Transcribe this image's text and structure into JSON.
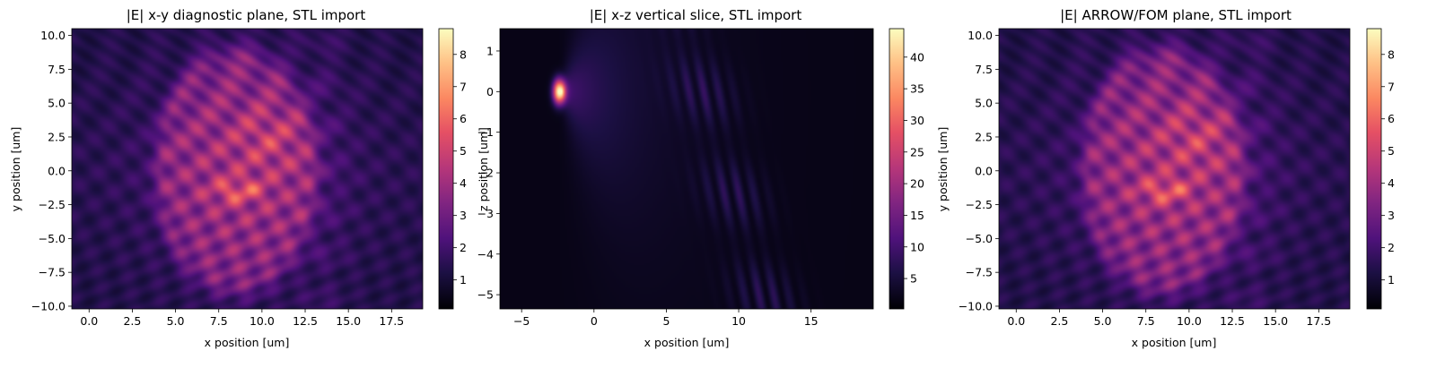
{
  "colormap": "magma",
  "chart_data": [
    {
      "type": "heatmap",
      "title": "|E| x-y diagnostic plane, STL import",
      "xlabel": "x position [um]",
      "ylabel": "y position [um]",
      "xlim": [
        -1.0,
        19.3
      ],
      "ylim": [
        -10.2,
        10.5
      ],
      "xticks": [
        "0.0",
        "2.5",
        "5.0",
        "7.5",
        "10.0",
        "12.5",
        "15.0",
        "17.5"
      ],
      "xtick_values": [
        0,
        2.5,
        5,
        7.5,
        10,
        12.5,
        15,
        17.5
      ],
      "yticks": [
        "10.0",
        "7.5",
        "5.0",
        "2.5",
        "0.0",
        "−2.5",
        "−5.0",
        "−7.5",
        "−10.0"
      ],
      "ytick_values": [
        10,
        7.5,
        5,
        2.5,
        0,
        -2.5,
        -5,
        -7.5,
        -10
      ],
      "colorbar": {
        "min": 0.1,
        "max": 8.8,
        "ticks": [
          "8",
          "7",
          "6",
          "5",
          "4",
          "3",
          "2",
          "1"
        ],
        "tick_values": [
          8,
          7,
          6,
          5,
          4,
          3,
          2,
          1
        ]
      },
      "field": "xy"
    },
    {
      "type": "heatmap",
      "title": "|E| x-z vertical slice, STL import",
      "xlabel": "x position [um]",
      "ylabel": "z position [um]",
      "xlim": [
        -6.5,
        19.3
      ],
      "ylim": [
        -5.35,
        1.55
      ],
      "xticks": [
        "−5",
        "0",
        "5",
        "10",
        "15"
      ],
      "xtick_values": [
        -5,
        0,
        5,
        10,
        15
      ],
      "yticks": [
        "1",
        "0",
        "−1",
        "−2",
        "−3",
        "−4",
        "−5"
      ],
      "ytick_values": [
        1,
        0,
        -1,
        -2,
        -3,
        -4,
        -5
      ],
      "colorbar": {
        "min": 0.2,
        "max": 44.5,
        "ticks": [
          "40",
          "35",
          "30",
          "25",
          "20",
          "15",
          "10",
          "5"
        ],
        "tick_values": [
          40,
          35,
          30,
          25,
          20,
          15,
          10,
          5
        ]
      },
      "field": "xz"
    },
    {
      "type": "heatmap",
      "title": "|E| ARROW/FOM plane, STL import",
      "xlabel": "x position [um]",
      "ylabel": "y position [um]",
      "xlim": [
        -1.0,
        19.3
      ],
      "ylim": [
        -10.2,
        10.5
      ],
      "xticks": [
        "0.0",
        "2.5",
        "5.0",
        "7.5",
        "10.0",
        "12.5",
        "15.0",
        "17.5"
      ],
      "xtick_values": [
        0,
        2.5,
        5,
        7.5,
        10,
        12.5,
        15,
        17.5
      ],
      "yticks": [
        "10.0",
        "7.5",
        "5.0",
        "2.5",
        "0.0",
        "−2.5",
        "−5.0",
        "−7.5",
        "−10.0"
      ],
      "ytick_values": [
        10,
        7.5,
        5,
        2.5,
        0,
        -2.5,
        -5,
        -7.5,
        -10
      ],
      "colorbar": {
        "min": 0.1,
        "max": 8.8,
        "ticks": [
          "8",
          "7",
          "6",
          "5",
          "4",
          "3",
          "2",
          "1"
        ],
        "tick_values": [
          8,
          7,
          6,
          5,
          4,
          3,
          2,
          1
        ]
      },
      "field": "xy"
    }
  ]
}
